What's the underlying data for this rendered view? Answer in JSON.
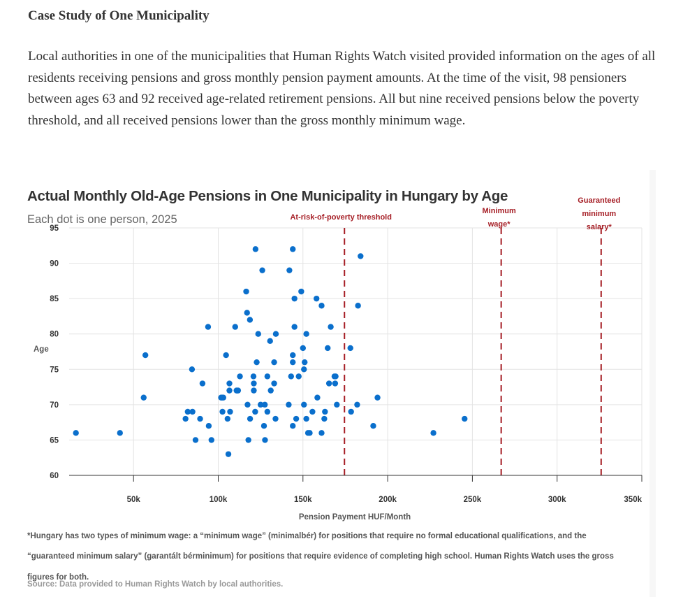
{
  "section": {
    "heading": "Case Study of One Municipality",
    "paragraph": "Local authorities in one of the municipalities that Human Rights Watch visited provided information on the ages of all residents receiving pensions and gross monthly pension payment amounts. At the time of the visit, 98 pensioners between ages 63 and 92 received age-related retirement pensions. All but nine received pensions below the poverty threshold, and all received pensions lower than the gross monthly minimum wage."
  },
  "colors": {
    "dot": "#0a6fcc",
    "reference_line": "#a51d24",
    "grid": "#e3e3e3",
    "axis": "#333333"
  },
  "chart_data": {
    "type": "scatter",
    "title": "Actual Monthly Old-Age Pensions in One Municipality in Hungary by Age",
    "subtitle": "Each dot is one person, 2025",
    "xlabel": "Pension Payment HUF/Month",
    "ylabel": "Age",
    "xlim": [
      12000,
      350000
    ],
    "ylim": [
      60,
      95
    ],
    "x_ticks": [
      50000,
      100000,
      150000,
      200000,
      250000,
      300000,
      350000
    ],
    "x_tick_labels": [
      "50k",
      "100k",
      "150k",
      "200k",
      "250k",
      "300k",
      "350k"
    ],
    "y_ticks": [
      60,
      65,
      70,
      75,
      80,
      85,
      90,
      95
    ],
    "y_tick_labels": [
      "60",
      "65",
      "70",
      "75",
      "80",
      "85",
      "90",
      "95"
    ],
    "grid": true,
    "reference_lines": [
      {
        "label_lines": [
          "At-risk-of-poverty threshold"
        ],
        "x": 174500
      },
      {
        "label_lines": [
          "Minimum",
          "wage*"
        ],
        "x": 267000
      },
      {
        "label_lines": [
          "Guaranteed",
          "minimum",
          "salary*"
        ],
        "x": 326000
      }
    ],
    "points": [
      [
        16000,
        66
      ],
      [
        42000,
        66
      ],
      [
        57000,
        77
      ],
      [
        56000,
        71
      ],
      [
        84500,
        75
      ],
      [
        90700,
        73
      ],
      [
        82000,
        69
      ],
      [
        84800,
        69
      ],
      [
        80700,
        68
      ],
      [
        89300,
        68
      ],
      [
        94400,
        67
      ],
      [
        86600,
        65
      ],
      [
        96000,
        65
      ],
      [
        106000,
        63
      ],
      [
        104600,
        77
      ],
      [
        106600,
        73
      ],
      [
        106600,
        72
      ],
      [
        110800,
        72
      ],
      [
        111700,
        72
      ],
      [
        111200,
        72
      ],
      [
        101700,
        71
      ],
      [
        103000,
        71
      ],
      [
        102300,
        71
      ],
      [
        102500,
        69
      ],
      [
        107000,
        69
      ],
      [
        105500,
        68
      ],
      [
        94000,
        81
      ],
      [
        110000,
        81
      ],
      [
        122000,
        92
      ],
      [
        144000,
        92
      ],
      [
        126000,
        89
      ],
      [
        142000,
        89
      ],
      [
        116500,
        86
      ],
      [
        149000,
        86
      ],
      [
        145000,
        85
      ],
      [
        158000,
        85
      ],
      [
        161000,
        84
      ],
      [
        117000,
        83
      ],
      [
        118700,
        82
      ],
      [
        145000,
        81
      ],
      [
        166400,
        81
      ],
      [
        123600,
        80
      ],
      [
        134000,
        80
      ],
      [
        152000,
        80
      ],
      [
        130600,
        79
      ],
      [
        150000,
        78
      ],
      [
        164600,
        78
      ],
      [
        178000,
        78
      ],
      [
        184000,
        91
      ],
      [
        182500,
        84
      ],
      [
        194000,
        71
      ],
      [
        170000,
        70
      ],
      [
        182000,
        70
      ],
      [
        178400,
        69
      ],
      [
        191500,
        67
      ],
      [
        144000,
        77
      ],
      [
        122700,
        76
      ],
      [
        133000,
        76
      ],
      [
        144000,
        76
      ],
      [
        151000,
        76
      ],
      [
        150600,
        75
      ],
      [
        112800,
        74
      ],
      [
        120800,
        74
      ],
      [
        129000,
        74
      ],
      [
        143000,
        74
      ],
      [
        147500,
        74
      ],
      [
        168600,
        74
      ],
      [
        169300,
        74
      ],
      [
        121000,
        73
      ],
      [
        133000,
        73
      ],
      [
        165400,
        73
      ],
      [
        169000,
        73
      ],
      [
        121000,
        72
      ],
      [
        131000,
        72
      ],
      [
        158500,
        71
      ],
      [
        117300,
        70
      ],
      [
        125000,
        70
      ],
      [
        127500,
        70
      ],
      [
        141600,
        70
      ],
      [
        150600,
        70
      ],
      [
        121800,
        69
      ],
      [
        129000,
        69
      ],
      [
        155600,
        69
      ],
      [
        163000,
        69
      ],
      [
        118800,
        68
      ],
      [
        133800,
        68
      ],
      [
        146000,
        68
      ],
      [
        152000,
        68
      ],
      [
        162600,
        68
      ],
      [
        127000,
        67
      ],
      [
        144000,
        67
      ],
      [
        153000,
        66
      ],
      [
        154000,
        66
      ],
      [
        161000,
        66
      ],
      [
        117800,
        65
      ],
      [
        127600,
        65
      ],
      [
        227000,
        66
      ],
      [
        245400,
        68
      ]
    ],
    "footnote_lines": [
      "*Hungary has two types of minimum wage: a “minimum wage” (minimalbér) for positions that require no formal educational qualifications, and the",
      "“guaranteed minimum salary” (garantált bérminimum) for positions that require evidence of completing high school. Human Rights Watch uses the gross",
      "figures for both."
    ],
    "source": "Source: Data provided to Human Rights Watch by local authorities."
  }
}
